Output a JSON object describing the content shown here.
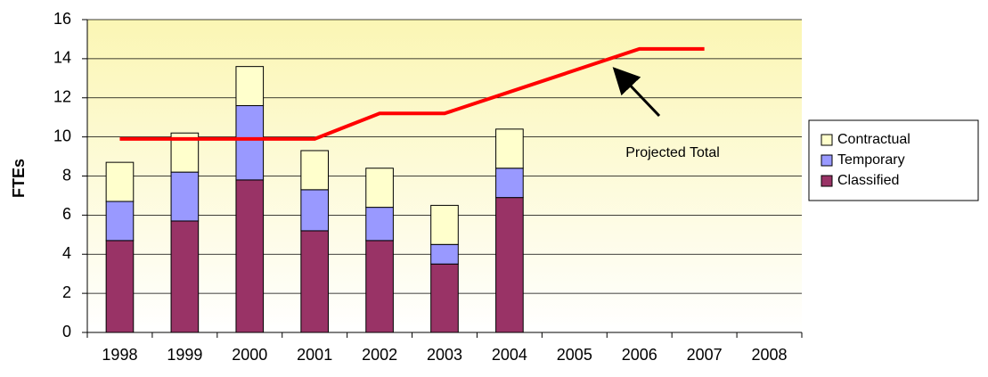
{
  "chart_data": {
    "type": "bar",
    "stacked": true,
    "y_label": "FTEs",
    "categories": [
      "1998",
      "1999",
      "2000",
      "2001",
      "2002",
      "2003",
      "2004",
      "2005",
      "2006",
      "2007",
      "2008"
    ],
    "series": [
      {
        "name": "Classified",
        "color": "#993366",
        "values": [
          4.7,
          5.7,
          7.8,
          5.2,
          4.7,
          3.5,
          6.9,
          null,
          null,
          null,
          null
        ]
      },
      {
        "name": "Temporary",
        "color": "#9999ff",
        "values": [
          2.0,
          2.5,
          3.8,
          2.1,
          1.7,
          1.0,
          1.5,
          null,
          null,
          null,
          null
        ]
      },
      {
        "name": "Contractual",
        "color": "#ffffcc",
        "values": [
          2.0,
          2.0,
          2.0,
          2.0,
          2.0,
          2.0,
          2.0,
          null,
          null,
          null,
          null
        ]
      }
    ],
    "line": {
      "label": "Projected Total",
      "color": "#ff0000",
      "values": [
        9.9,
        9.9,
        9.9,
        9.9,
        11.2,
        11.2,
        12.3,
        13.4,
        14.5,
        14.5,
        null
      ]
    },
    "ylim": [
      0,
      16
    ],
    "yticks": [
      0,
      2,
      4,
      6,
      8,
      10,
      12,
      14,
      16
    ],
    "grid": true,
    "legend": "right"
  }
}
